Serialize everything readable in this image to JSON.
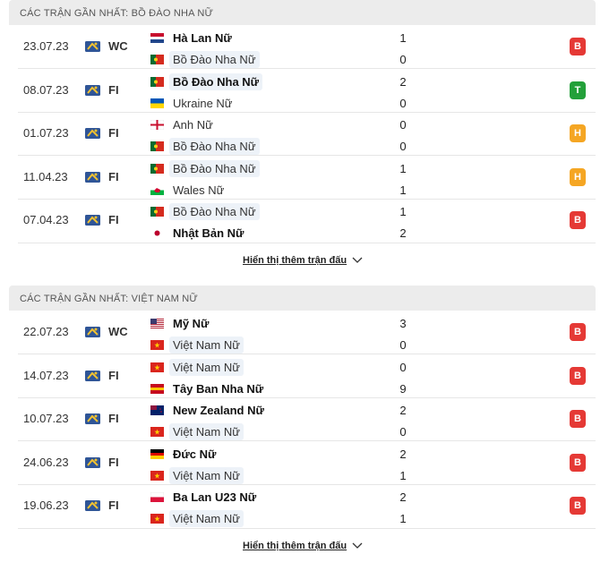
{
  "sections": [
    {
      "title": "CÁC TRẬN GẦN NHẤT: BỒ ĐÀO NHA NỮ",
      "show_more": "Hiển thị thêm trận đấu",
      "matches": [
        {
          "date": "23.07.23",
          "competition": "WC",
          "home": "Hà Lan Nữ",
          "away": "Bồ Đào Nha Nữ",
          "home_score": 1,
          "away_score": 0,
          "result": "B"
        },
        {
          "date": "08.07.23",
          "competition": "FI",
          "home": "Bồ Đào Nha Nữ",
          "away": "Ukraine Nữ",
          "home_score": 2,
          "away_score": 0,
          "result": "T"
        },
        {
          "date": "01.07.23",
          "competition": "FI",
          "home": "Anh Nữ",
          "away": "Bồ Đào Nha Nữ",
          "home_score": 0,
          "away_score": 0,
          "result": "H"
        },
        {
          "date": "11.04.23",
          "competition": "FI",
          "home": "Bồ Đào Nha Nữ",
          "away": "Wales Nữ",
          "home_score": 1,
          "away_score": 1,
          "result": "H"
        },
        {
          "date": "07.04.23",
          "competition": "FI",
          "home": "Bồ Đào Nha Nữ",
          "away": "Nhật Bản Nữ",
          "home_score": 1,
          "away_score": 2,
          "result": "B"
        }
      ]
    },
    {
      "title": "CÁC TRẬN GẦN NHẤT: VIỆT NAM NỮ",
      "show_more": "Hiển thị thêm trận đấu",
      "matches": [
        {
          "date": "22.07.23",
          "competition": "WC",
          "home": "Mỹ Nữ",
          "away": "Việt Nam Nữ",
          "home_score": 3,
          "away_score": 0,
          "result": "B"
        },
        {
          "date": "14.07.23",
          "competition": "FI",
          "home": "Việt Nam Nữ",
          "away": "Tây Ban Nha Nữ",
          "home_score": 0,
          "away_score": 9,
          "result": "B"
        },
        {
          "date": "10.07.23",
          "competition": "FI",
          "home": "New Zealand Nữ",
          "away": "Việt Nam Nữ",
          "home_score": 2,
          "away_score": 0,
          "result": "B"
        },
        {
          "date": "24.06.23",
          "competition": "FI",
          "home": "Đức Nữ",
          "away": "Việt Nam Nữ",
          "home_score": 2,
          "away_score": 1,
          "result": "B"
        },
        {
          "date": "19.06.23",
          "competition": "FI",
          "home": "Ba Lan U23 Nữ",
          "away": "Việt Nam Nữ",
          "home_score": 2,
          "away_score": 1,
          "result": "B"
        }
      ]
    }
  ]
}
